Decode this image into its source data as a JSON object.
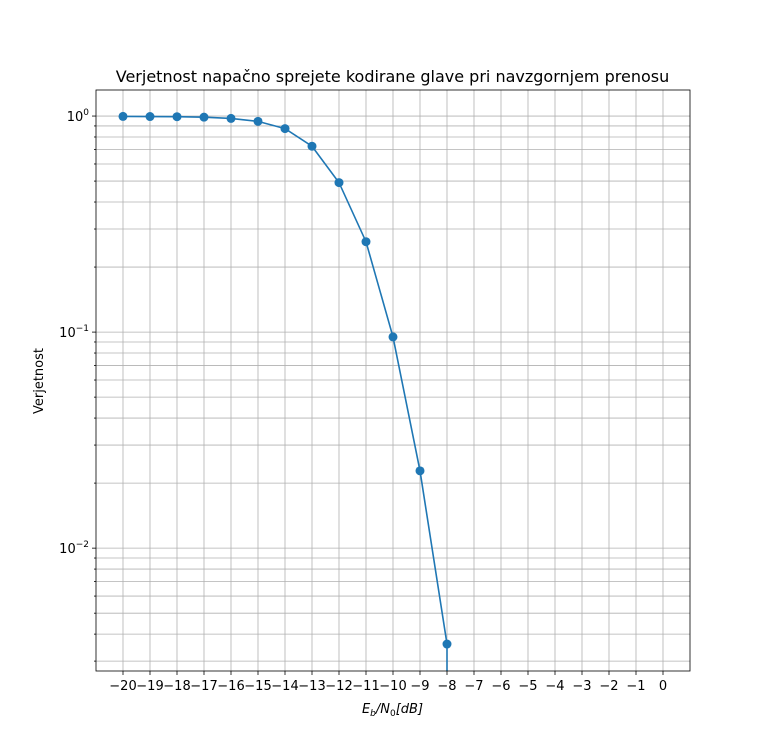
{
  "chart_data": {
    "type": "line",
    "title": "Verjetnost napačno sprejete kodirane glave pri navzgornjem prenosu",
    "xlabel_main": "E",
    "xlabel_sub1": "b",
    "xlabel_mid": "/N",
    "xlabel_sub2": "0",
    "xlabel_tail": "[dB]",
    "ylabel": "Verjetnost",
    "x_ticks": [
      "−20",
      "−19",
      "−18",
      "−17",
      "−16",
      "−15",
      "−14",
      "−13",
      "−12",
      "−11",
      "−10",
      "−9",
      "−8",
      "−7",
      "−6",
      "−5",
      "−4",
      "−3",
      "−2",
      "−1",
      "0"
    ],
    "y_ticks": [
      {
        "value": 1,
        "base": "10",
        "exp": "0"
      },
      {
        "value": 0.1,
        "base": "10",
        "exp": "−1"
      },
      {
        "value": 0.01,
        "base": "10",
        "exp": "−2"
      }
    ],
    "xlim": [
      -21,
      1
    ],
    "ylim": [
      0.0027,
      1.32
    ],
    "yscale": "log",
    "grid": true,
    "color": "#1f77b4",
    "series": [
      {
        "x": [
          -20,
          -19,
          -18,
          -17,
          -16,
          -15,
          -14,
          -13,
          -12,
          -11,
          -10,
          -9,
          -8
        ],
        "y": [
          0.996,
          0.995,
          0.993,
          0.988,
          0.975,
          0.945,
          0.875,
          0.725,
          0.492,
          0.262,
          0.095,
          0.0228,
          0.0036
        ]
      }
    ],
    "tail_to_bottom": true
  }
}
